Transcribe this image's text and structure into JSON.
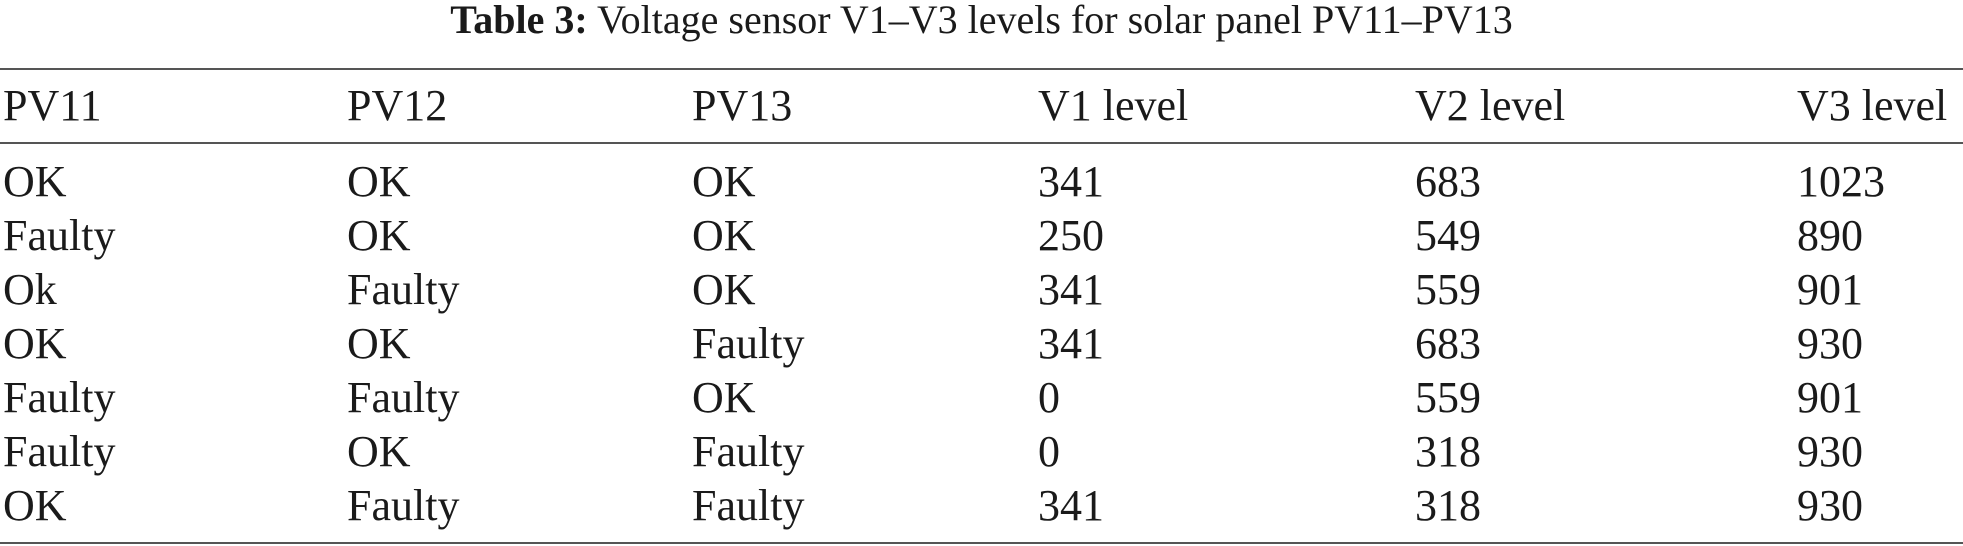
{
  "caption": {
    "label": "Table 3:",
    "text": "Voltage sensor V1–V3 levels for solar panel PV11–PV13"
  },
  "table": {
    "header": [
      "PV11",
      "PV12",
      "PV13",
      "V1 level",
      "V2 level",
      "V3 level"
    ],
    "rows": [
      [
        "OK",
        "OK",
        "OK",
        341,
        683,
        1023
      ],
      [
        "Faulty",
        "OK",
        "OK",
        250,
        549,
        890
      ],
      [
        "Ok",
        "Faulty",
        "OK",
        341,
        559,
        901
      ],
      [
        "OK",
        "OK",
        "Faulty",
        341,
        683,
        930
      ],
      [
        "Faulty",
        "Faulty",
        "OK",
        0,
        559,
        901
      ],
      [
        "Faulty",
        "OK",
        "Faulty",
        0,
        318,
        930
      ],
      [
        "OK",
        "Faulty",
        "Faulty",
        341,
        318,
        930
      ]
    ]
  }
}
